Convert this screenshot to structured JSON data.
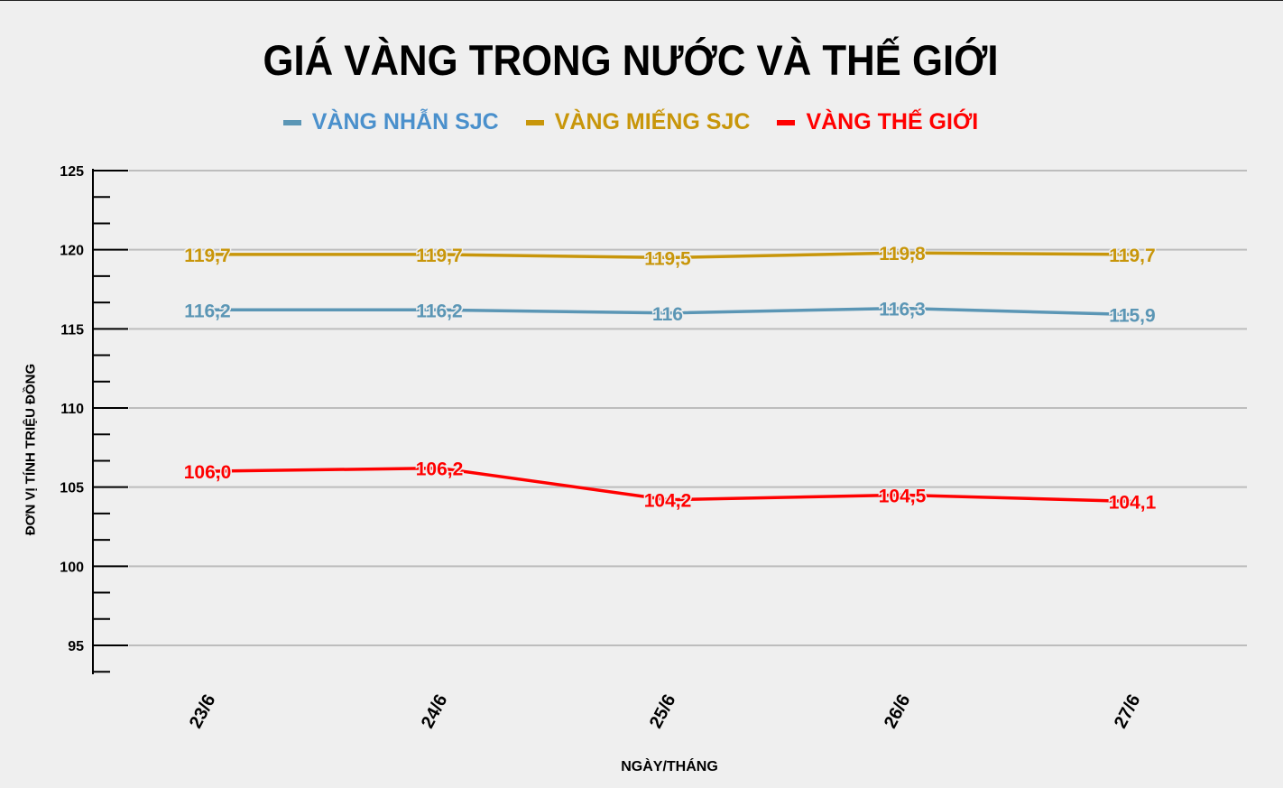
{
  "title": "GIÁ VÀNG TRONG NƯỚC VÀ THẾ GIỚI",
  "legend": [
    {
      "label": "VÀNG NHẪN SJC",
      "color": "#4a90cc",
      "line_color": "#5b96b5"
    },
    {
      "label": "VÀNG MIẾNG SJC",
      "color": "#c8960a",
      "line_color": "#c8960a"
    },
    {
      "label": "VÀNG THẾ GIỚI",
      "color": "#ff0000",
      "line_color": "#ff0000"
    }
  ],
  "axes": {
    "ylabel": "ĐƠN VỊ TÍNH TRIỆU ĐỒNG",
    "xlabel": "NGÀY/THÁNG"
  },
  "chart_data": {
    "type": "line",
    "title": "GIÁ VÀNG TRONG NƯỚC VÀ THẾ GIỚI",
    "xlabel": "NGÀY/THÁNG",
    "ylabel": "ĐƠN VỊ TÍNH TRIỆU ĐỒNG",
    "categories": [
      "23/6",
      "24/6",
      "25/6",
      "26/6",
      "27/6"
    ],
    "ylim": [
      93.3,
      125
    ],
    "yticks": [
      95,
      100,
      105,
      110,
      115,
      120,
      125
    ],
    "grid": true,
    "legend_position": "top",
    "series": [
      {
        "name": "VÀNG NHẪN SJC",
        "color": "#5b96b5",
        "values": [
          116.2,
          116.2,
          116.0,
          116.3,
          115.9
        ],
        "labels": [
          "116,2",
          "116,2",
          "116",
          "116,3",
          "115,9"
        ]
      },
      {
        "name": "VÀNG MIẾNG SJC",
        "color": "#c8960a",
        "values": [
          119.7,
          119.7,
          119.5,
          119.8,
          119.7
        ],
        "labels": [
          "119,7",
          "119,7",
          "119,5",
          "119,8",
          "119,7"
        ]
      },
      {
        "name": "VÀNG THẾ GIỚI",
        "color": "#ff0000",
        "values": [
          106.0,
          106.2,
          104.2,
          104.5,
          104.1
        ],
        "labels": [
          "106,0",
          "106,2",
          "104,2",
          "104,5",
          "104,1"
        ]
      }
    ]
  }
}
